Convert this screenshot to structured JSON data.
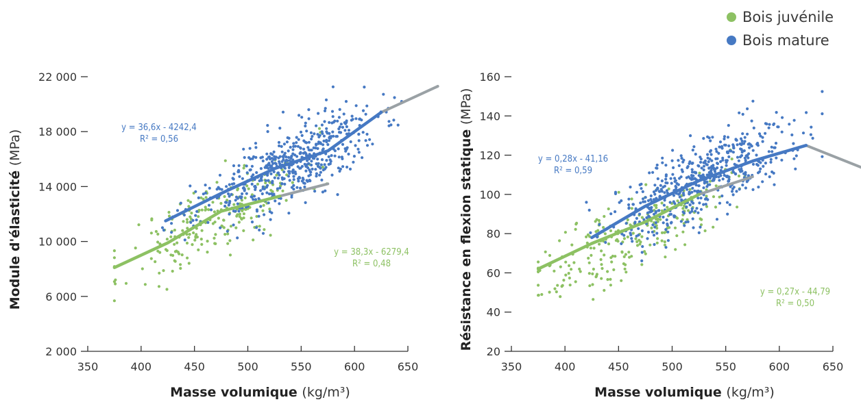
{
  "legend": {
    "juvenile": "Bois juvénile",
    "mature": "Bois mature"
  },
  "colors": {
    "juvenile": "#8dc163",
    "mature": "#4679c3",
    "extension": "#9aa1a5"
  },
  "chart_data": [
    {
      "type": "scatter",
      "xlabel_bold": "Masse volumique",
      "xlabel_unit": "(kg/m³)",
      "ylabel_bold": "Module d'élasticité",
      "ylabel_unit": "(MPa)",
      "xlim": [
        350,
        650
      ],
      "ylim": [
        2000,
        22000
      ],
      "x_ticks": [
        350,
        400,
        450,
        500,
        550,
        600,
        650
      ],
      "y_ticks": [
        2000,
        6000,
        10000,
        14000,
        18000,
        22000
      ],
      "y_tick_labels": [
        "2 000",
        "6 000",
        "10 000",
        "14 000",
        "18 000",
        "22 000"
      ],
      "series": [
        {
          "name": "Bois juvénile",
          "color": "#8dc163",
          "equation": "y = 38,3x - 6279,4",
          "r2": "R² = 0,48",
          "x_range": [
            375,
            580
          ],
          "slope": 38.3,
          "intercept": -6279.4,
          "trend": [
            [
              375,
              8100
            ],
            [
              425,
              9900
            ],
            [
              475,
              12200
            ],
            [
              530,
              13300
            ]
          ],
          "trend_extension": [
            [
              530,
              13300
            ],
            [
              575,
              14200
            ]
          ],
          "cloud": {
            "count": 230,
            "x_mean": 470,
            "x_sd": 42,
            "resid_sd": 1400,
            "seed": 11
          }
        },
        {
          "name": "Bois mature",
          "color": "#4679c3",
          "equation": "y = 36,6x - 4242,4",
          "r2": "R² = 0,56",
          "x_range": [
            420,
            650
          ],
          "slope": 36.6,
          "intercept": -4242.4,
          "trend": [
            [
              423,
              11500
            ],
            [
              475,
              13500
            ],
            [
              525,
              15300
            ],
            [
              575,
              16600
            ],
            [
              625,
              19400
            ]
          ],
          "trend_extension": [
            [
              625,
              19400
            ],
            [
              678,
              21300
            ]
          ],
          "cloud": {
            "count": 560,
            "x_mean": 535,
            "x_sd": 42,
            "resid_sd": 1350,
            "seed": 23
          }
        }
      ]
    },
    {
      "type": "scatter",
      "xlabel_bold": "Masse volumique",
      "xlabel_unit": "(kg/m³)",
      "ylabel_bold": "Résistance en flexion statique",
      "ylabel_unit": "(MPa)",
      "xlim": [
        350,
        650
      ],
      "ylim": [
        20,
        160
      ],
      "x_ticks": [
        350,
        400,
        450,
        500,
        550,
        600,
        650
      ],
      "y_ticks": [
        20,
        40,
        60,
        80,
        100,
        120,
        140,
        160
      ],
      "y_tick_labels": [
        "20",
        "40",
        "60",
        "80",
        "100",
        "120",
        "140",
        "160"
      ],
      "series": [
        {
          "name": "Bois juvénile",
          "color": "#8dc163",
          "equation": "y = 0,27x - 44,79",
          "r2": "R² = 0,50",
          "x_range": [
            375,
            580
          ],
          "slope": 0.27,
          "intercept": -44.79,
          "trend": [
            [
              375,
              62
            ],
            [
              425,
              75
            ],
            [
              475,
              86
            ],
            [
              525,
              100
            ]
          ],
          "trend_extension": [
            [
              525,
              100
            ],
            [
              575,
              109
            ]
          ],
          "cloud": {
            "count": 250,
            "x_mean": 460,
            "x_sd": 45,
            "resid_sd": 10,
            "seed": 37
          }
        },
        {
          "name": "Bois mature",
          "color": "#4679c3",
          "equation": "y = 0,28x - 41,16",
          "r2": "R² = 0,59",
          "x_range": [
            420,
            640
          ],
          "slope": 0.28,
          "intercept": -41.16,
          "trend": [
            [
              425,
              78
            ],
            [
              475,
              94
            ],
            [
              525,
              107
            ],
            [
              575,
              117
            ],
            [
              625,
              125
            ]
          ],
          "trend_extension": [
            [
              625,
              125
            ],
            [
              680,
              113
            ]
          ],
          "cloud": {
            "count": 580,
            "x_mean": 530,
            "x_sd": 42,
            "resid_sd": 10,
            "seed": 51
          }
        }
      ]
    }
  ]
}
